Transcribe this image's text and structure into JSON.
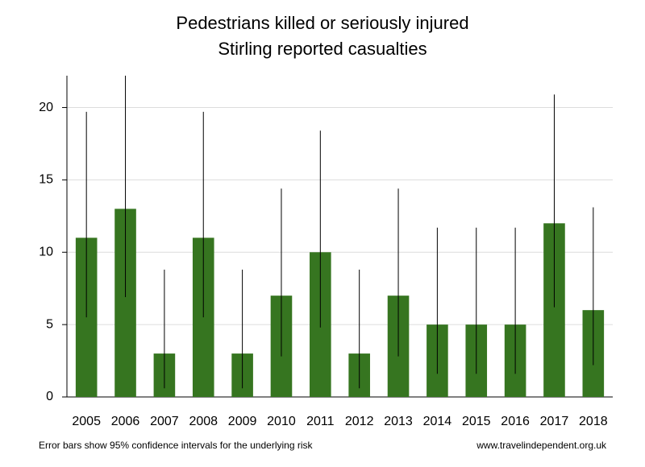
{
  "chart_data": {
    "type": "bar",
    "title": "Pedestrians killed or seriously injured",
    "subtitle": "Stirling reported casualties",
    "categories": [
      "2005",
      "2006",
      "2007",
      "2008",
      "2009",
      "2010",
      "2011",
      "2012",
      "2013",
      "2014",
      "2015",
      "2016",
      "2017",
      "2018"
    ],
    "values": [
      11,
      13,
      3,
      11,
      3,
      7,
      10,
      3,
      7,
      5,
      5,
      5,
      12,
      6
    ],
    "error_low": [
      5.5,
      6.9,
      0.6,
      5.5,
      0.6,
      2.8,
      4.8,
      0.6,
      2.8,
      1.6,
      1.6,
      1.6,
      6.2,
      2.2
    ],
    "error_high": [
      19.7,
      22.2,
      8.8,
      19.7,
      8.8,
      14.4,
      18.4,
      8.8,
      14.4,
      11.7,
      11.7,
      11.7,
      20.9,
      13.1
    ],
    "ylim": [
      0,
      22.2
    ],
    "yticks": [
      0,
      5,
      10,
      15,
      20
    ],
    "grid": true,
    "xlabel": "",
    "ylabel": "",
    "bar_color": "#367520",
    "footnote": "Error bars show 95% confidence intervals for the underlying risk",
    "source": "www.travelindependent.org.uk"
  }
}
